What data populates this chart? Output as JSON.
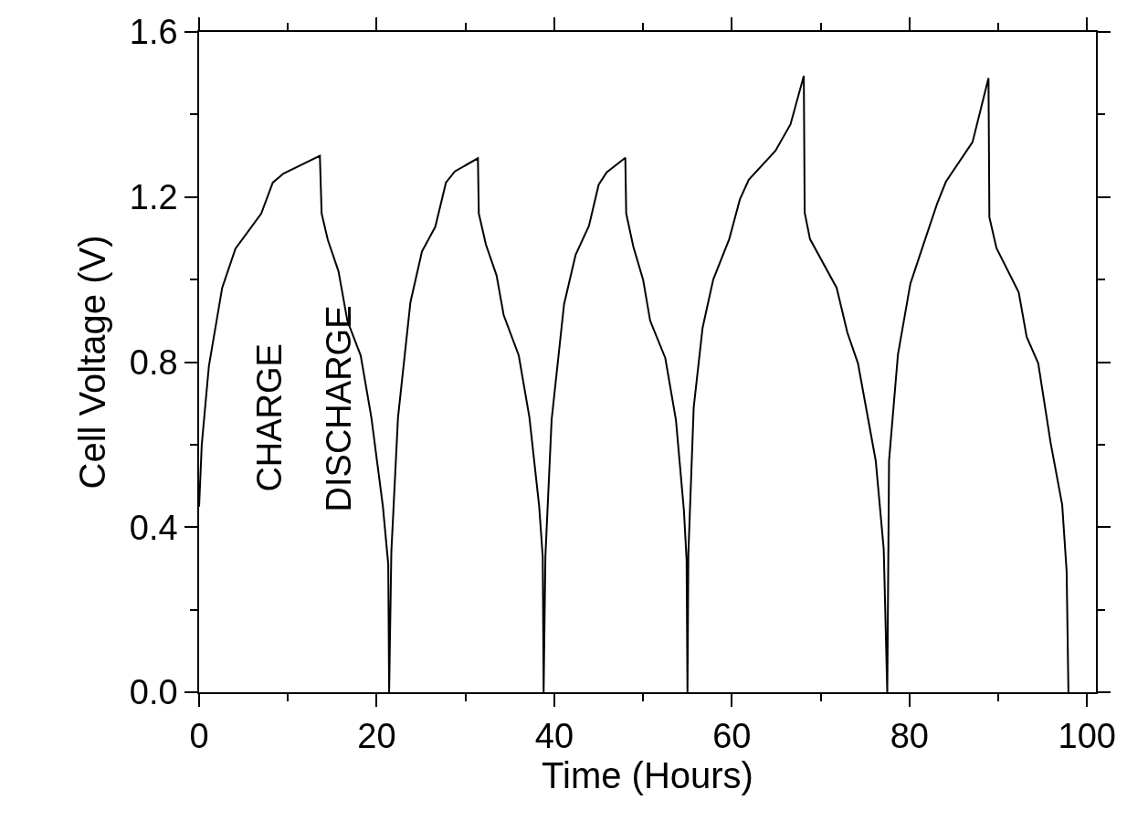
{
  "chart_data": {
    "type": "line",
    "xlabel": "Time (Hours)",
    "ylabel": "Cell Voltage (V)",
    "annotations": [
      "CHARGE",
      "DISCHARGE"
    ],
    "x": [
      0,
      0.3,
      1.1,
      2.6,
      4.1,
      7.0,
      8.3,
      9.5,
      13.6,
      13.8,
      14.5,
      15.7,
      16.7,
      18.2,
      19.4,
      20.7,
      21.3,
      21.4,
      21.65,
      22.4,
      23.8,
      25.1,
      26.6,
      27.8,
      28.8,
      31.4,
      31.5,
      32.3,
      33.5,
      34.3,
      36.0,
      37.2,
      38.3,
      38.7,
      38.8,
      39.0,
      39.7,
      41.1,
      42.4,
      43.9,
      45.0,
      45.9,
      48.0,
      48.1,
      48.9,
      50.0,
      50.8,
      52.5,
      53.7,
      54.6,
      54.9,
      55.0,
      55.1,
      55.7,
      56.7,
      57.9,
      59.7,
      60.9,
      61.9,
      64.9,
      66.6,
      68.1,
      68.2,
      68.8,
      71.8,
      73.0,
      74.2,
      76.2,
      77.1,
      77.5,
      77.7,
      78.7,
      80.1,
      81.6,
      83.1,
      84.1,
      87.1,
      88.9,
      89.0,
      89.8,
      92.3,
      93.2,
      94.5,
      95.9,
      97.2,
      97.7,
      97.9
    ],
    "values": [
      0.45,
      0.6,
      0.79,
      0.98,
      1.075,
      1.16,
      1.235,
      1.257,
      1.3,
      1.16,
      1.096,
      1.02,
      0.9,
      0.816,
      0.666,
      0.45,
      0.31,
      0.0,
      0.34,
      0.666,
      0.945,
      1.068,
      1.128,
      1.235,
      1.262,
      1.294,
      1.16,
      1.085,
      1.01,
      0.914,
      0.816,
      0.666,
      0.45,
      0.328,
      0.0,
      0.33,
      0.66,
      0.94,
      1.06,
      1.13,
      1.23,
      1.26,
      1.295,
      1.16,
      1.08,
      1.0,
      0.9,
      0.81,
      0.66,
      0.44,
      0.32,
      0.0,
      0.336,
      0.69,
      0.883,
      1.0,
      1.098,
      1.194,
      1.242,
      1.312,
      1.376,
      1.494,
      1.162,
      1.098,
      0.98,
      0.872,
      0.797,
      0.561,
      0.347,
      0.0,
      0.561,
      0.818,
      0.99,
      1.087,
      1.183,
      1.237,
      1.333,
      1.488,
      1.151,
      1.076,
      0.969,
      0.861,
      0.797,
      0.604,
      0.454,
      0.293,
      0.0
    ],
    "color": "#000000",
    "line_style": "solid",
    "marker": "none",
    "xlim": [
      0,
      101
    ],
    "ylim": [
      0,
      1.6
    ],
    "xticks": [
      0,
      20,
      40,
      60,
      80,
      100
    ],
    "yticks": [
      {
        "value": 0,
        "label": "0.0"
      },
      {
        "value": 0.4,
        "label": "0.4"
      },
      {
        "value": 0.8,
        "label": "0.8"
      },
      {
        "value": 1.2,
        "label": "1.2"
      },
      {
        "value": 1.6,
        "label": "1.6"
      }
    ]
  }
}
